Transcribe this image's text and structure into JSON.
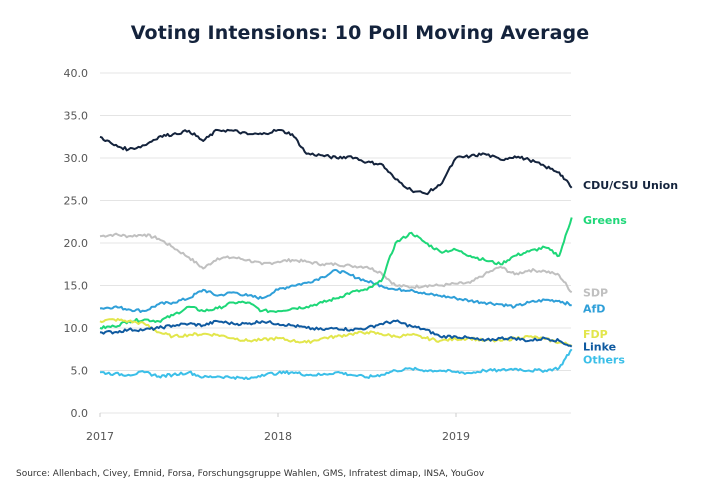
{
  "chart_data": {
    "type": "line",
    "title": "Voting Intensions: 10 Poll Moving Average",
    "xlabel": "",
    "ylabel": "",
    "ylim": [
      0,
      40
    ],
    "xlim": [
      2017.0,
      2019.65
    ],
    "yticks": [
      "0.0",
      "5.0",
      "10.0",
      "15.0",
      "20.0",
      "25.0",
      "30.0",
      "35.0",
      "40.0"
    ],
    "ytick_values": [
      0,
      5,
      10,
      15,
      20,
      25,
      30,
      35,
      40
    ],
    "xticks": [
      "2017",
      "2018",
      "2019"
    ],
    "xtick_values": [
      2017,
      2018,
      2019
    ],
    "grid": "horizontal",
    "legend": "direct labels at right end of lines",
    "x": [
      2017.0,
      2017.08,
      2017.16,
      2017.25,
      2017.33,
      2017.41,
      2017.5,
      2017.58,
      2017.66,
      2017.75,
      2017.83,
      2017.91,
      2018.0,
      2018.08,
      2018.16,
      2018.25,
      2018.33,
      2018.41,
      2018.5,
      2018.58,
      2018.66,
      2018.75,
      2018.83,
      2018.91,
      2019.0,
      2019.08,
      2019.16,
      2019.25,
      2019.33,
      2019.41,
      2019.5,
      2019.58,
      2019.65
    ],
    "series": [
      {
        "name": "CDU/CSU Union",
        "color": "#14233c",
        "values": [
          32.5,
          31.5,
          31.0,
          31.5,
          32.5,
          32.8,
          33.2,
          32.0,
          33.3,
          33.2,
          32.8,
          32.8,
          33.3,
          32.8,
          30.5,
          30.3,
          30.0,
          30.2,
          29.5,
          29.3,
          27.5,
          26.2,
          25.8,
          26.8,
          30.0,
          30.2,
          30.5,
          29.8,
          30.2,
          29.8,
          29.0,
          28.3,
          26.5
        ]
      },
      {
        "name": "Greens",
        "color": "#1ed778",
        "values": [
          10.0,
          10.2,
          10.8,
          11.0,
          10.8,
          11.5,
          12.5,
          12.0,
          12.3,
          13.0,
          13.0,
          12.0,
          12.0,
          12.3,
          12.5,
          13.0,
          13.5,
          14.2,
          14.5,
          15.5,
          20.0,
          21.2,
          20.0,
          19.0,
          19.2,
          18.5,
          18.0,
          17.5,
          18.5,
          19.0,
          19.5,
          18.5,
          23.0
        ]
      },
      {
        "name": "SDP",
        "color": "#c0c0c0",
        "values": [
          20.8,
          21.0,
          20.8,
          21.0,
          20.5,
          19.5,
          18.3,
          17.0,
          18.2,
          18.3,
          18.0,
          17.5,
          17.8,
          18.0,
          17.8,
          17.5,
          17.5,
          17.3,
          17.2,
          16.5,
          15.0,
          14.8,
          15.0,
          15.0,
          15.2,
          15.3,
          16.3,
          17.2,
          16.3,
          16.8,
          16.7,
          16.2,
          14.2
        ]
      },
      {
        "name": "AfD",
        "color": "#2f9fd8",
        "values": [
          12.3,
          12.5,
          12.2,
          12.0,
          12.8,
          13.0,
          13.5,
          14.5,
          13.8,
          14.2,
          13.8,
          13.5,
          14.5,
          15.0,
          15.3,
          16.0,
          16.8,
          16.2,
          15.5,
          15.0,
          14.5,
          14.5,
          14.0,
          13.8,
          13.5,
          13.2,
          13.0,
          12.8,
          12.5,
          13.0,
          13.3,
          13.2,
          12.7
        ]
      },
      {
        "name": "FDP",
        "color": "#e2e64c",
        "values": [
          10.8,
          11.0,
          10.8,
          10.5,
          9.5,
          9.0,
          9.2,
          9.3,
          9.2,
          8.8,
          8.5,
          8.6,
          8.8,
          8.5,
          8.3,
          8.8,
          9.0,
          9.3,
          9.5,
          9.3,
          9.0,
          9.2,
          8.8,
          8.5,
          8.7,
          8.8,
          8.5,
          8.5,
          8.8,
          9.0,
          8.7,
          8.3,
          8.0
        ]
      },
      {
        "name": "Linke",
        "color": "#0f5aa0",
        "values": [
          9.5,
          9.5,
          9.8,
          9.8,
          10.0,
          10.3,
          10.5,
          10.3,
          10.8,
          10.5,
          10.5,
          10.8,
          10.5,
          10.3,
          10.0,
          9.8,
          10.0,
          9.8,
          10.0,
          10.5,
          10.8,
          10.2,
          9.8,
          9.0,
          9.0,
          8.8,
          8.5,
          8.8,
          8.8,
          8.5,
          8.8,
          8.5,
          7.8
        ]
      },
      {
        "name": "Others",
        "color": "#3bbfe8",
        "values": [
          4.8,
          4.6,
          4.5,
          4.8,
          4.3,
          4.5,
          4.8,
          4.2,
          4.3,
          4.2,
          4.0,
          4.5,
          4.7,
          4.8,
          4.5,
          4.5,
          4.8,
          4.5,
          4.2,
          4.5,
          5.0,
          5.2,
          5.0,
          5.0,
          4.8,
          4.7,
          5.0,
          5.0,
          5.2,
          5.0,
          5.0,
          5.3,
          7.5
        ]
      }
    ],
    "labels": [
      {
        "text": "CDU/CSU Union",
        "series": "CDU/CSU Union"
      },
      {
        "text": "Greens",
        "series": "Greens"
      },
      {
        "text": "SDP",
        "series": "SDP"
      },
      {
        "text": "AfD",
        "series": "AfD"
      },
      {
        "text": "FDP",
        "series": "FDP"
      },
      {
        "text": "Linke",
        "series": "Linke"
      },
      {
        "text": "Others",
        "series": "Others"
      }
    ]
  },
  "source": "Source: Allenbach, Civey, Emnid, Forsa, Forschungsgruppe Wahlen, GMS, Infratest dimap, INSA, YouGov"
}
